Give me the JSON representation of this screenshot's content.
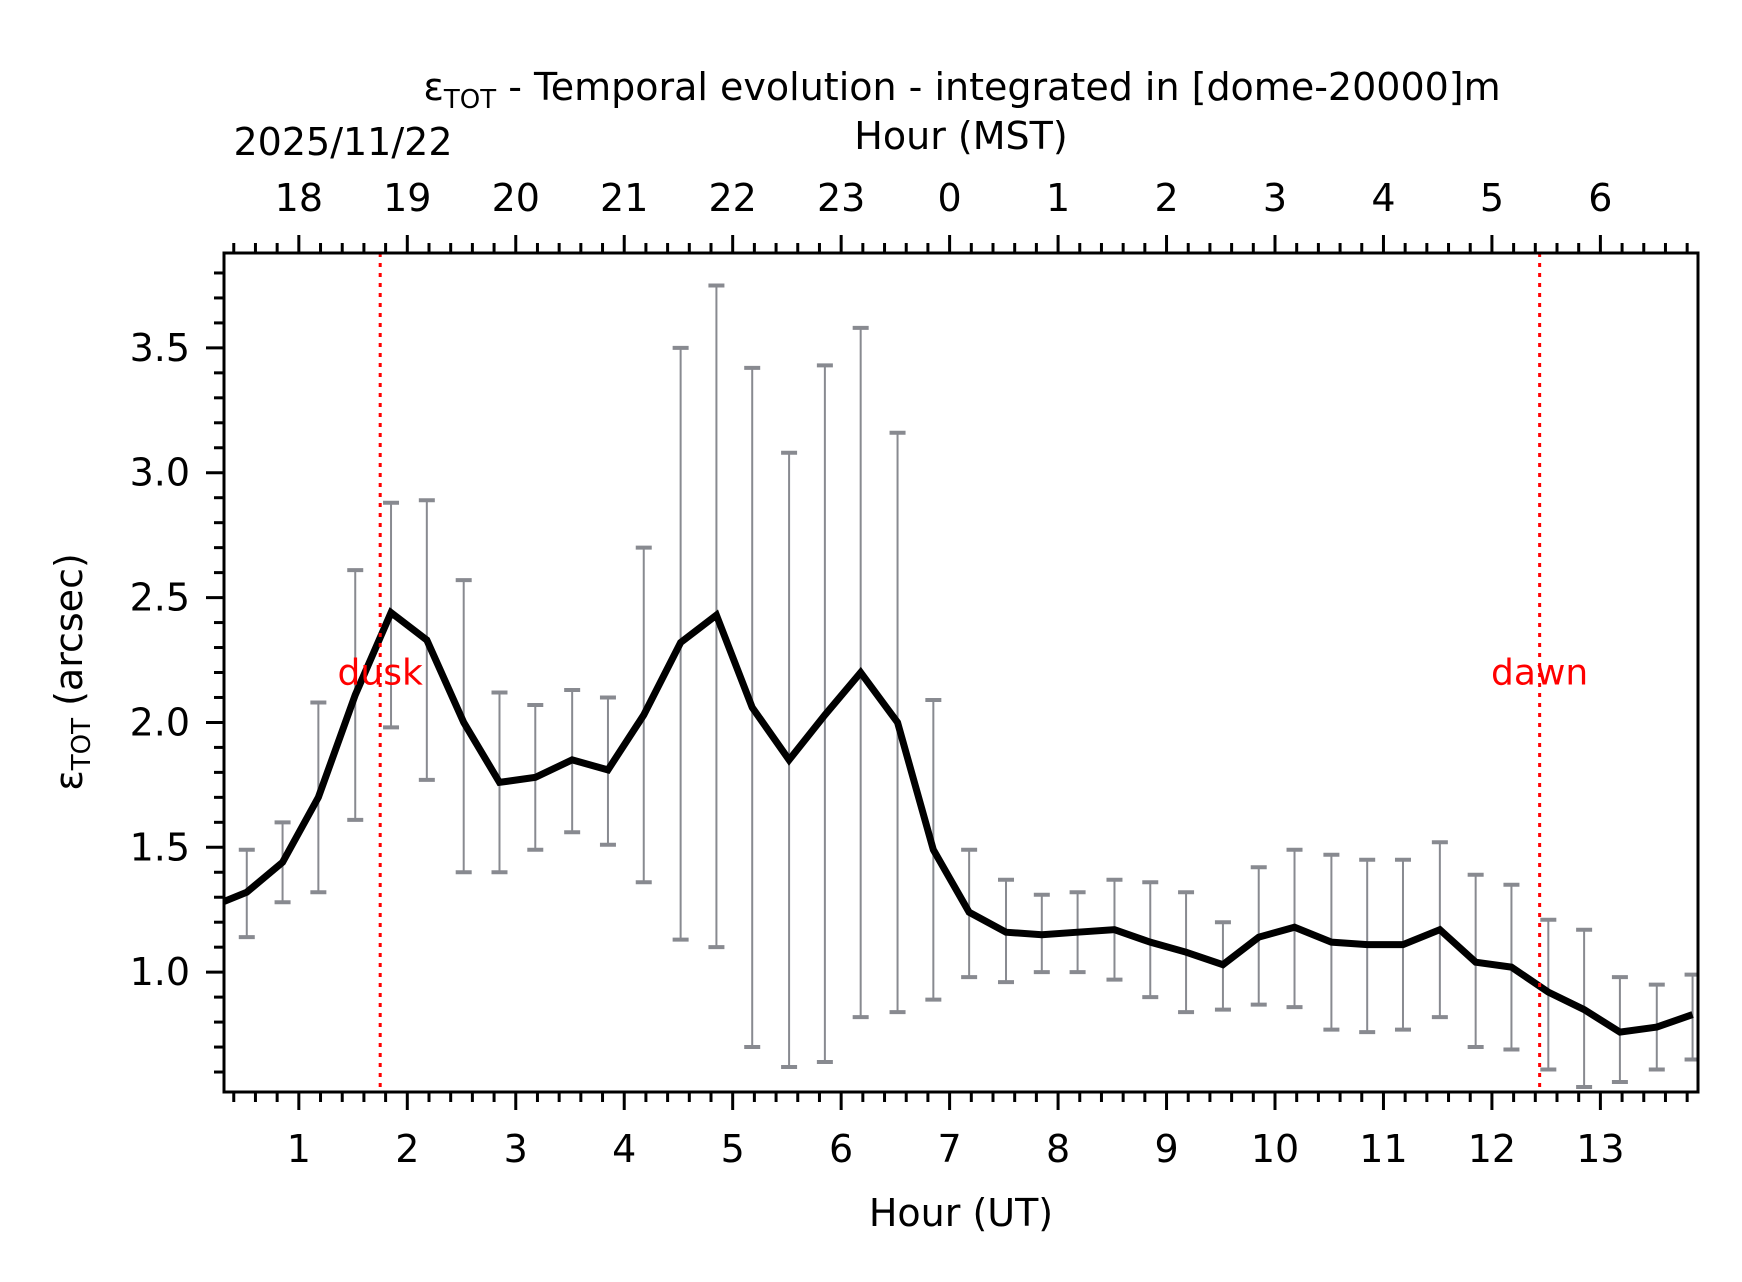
{
  "chart_data": {
    "type": "line",
    "title_symbol": "ε",
    "title_subscript": "TOT",
    "title_rest": " - Temporal evolution - integrated in [dome-20000]m",
    "date_label": "2025/11/22",
    "xlabel": "Hour (UT)",
    "x2label": "Hour (MST)",
    "ylabel_symbol": "ε",
    "ylabel_subscript": "TOT",
    "ylabel_rest": " (arcsec)",
    "xlim": [
      0.31,
      13.9
    ],
    "ylim": [
      0.52,
      3.88
    ],
    "x_ticks": [
      1,
      2,
      3,
      4,
      5,
      6,
      7,
      8,
      9,
      10,
      11,
      12,
      13
    ],
    "x_tick_labels": [
      "1",
      "2",
      "3",
      "4",
      "5",
      "6",
      "7",
      "8",
      "9",
      "10",
      "11",
      "12",
      "13"
    ],
    "x2_tick_labels": [
      "18",
      "19",
      "20",
      "21",
      "22",
      "23",
      "0",
      "1",
      "2",
      "3",
      "4",
      "5",
      "6"
    ],
    "y_ticks": [
      1.0,
      1.5,
      2.0,
      2.5,
      3.0,
      3.5
    ],
    "y_tick_labels": [
      "1.0",
      "1.5",
      "2.0",
      "2.5",
      "3.0",
      "3.5"
    ],
    "grid": false,
    "colors": {
      "line": "#000000",
      "errorbar": "#888a90",
      "marker_line": "#ff0000"
    },
    "series": [
      {
        "x": [
          0.18,
          0.52,
          0.85,
          1.18,
          1.52,
          1.85,
          2.18,
          2.52,
          2.85,
          3.18,
          3.52,
          3.85,
          4.18,
          4.52,
          4.85,
          5.18,
          5.52,
          5.85,
          6.18,
          6.52,
          6.85,
          7.18,
          7.52,
          7.85,
          8.18,
          8.52,
          8.85,
          9.18,
          9.52,
          9.85,
          10.18,
          10.52,
          10.85,
          11.18,
          11.52,
          11.85,
          12.18,
          12.52,
          12.85,
          13.18,
          13.52,
          13.85
        ],
        "y": [
          1.26,
          1.32,
          1.44,
          1.7,
          2.11,
          2.44,
          2.33,
          2.0,
          1.76,
          1.78,
          1.85,
          1.81,
          2.03,
          2.32,
          2.43,
          2.06,
          1.85,
          2.03,
          2.2,
          2.0,
          1.49,
          1.24,
          1.16,
          1.15,
          1.16,
          1.17,
          1.12,
          1.08,
          1.03,
          1.14,
          1.18,
          1.12,
          1.11,
          1.11,
          1.17,
          1.04,
          1.02,
          0.92,
          0.85,
          0.76,
          0.78,
          0.83
        ],
        "y_upper": [
          null,
          1.49,
          1.6,
          2.08,
          2.61,
          2.88,
          2.89,
          2.57,
          2.12,
          2.07,
          2.13,
          2.1,
          2.7,
          3.5,
          3.75,
          3.42,
          3.08,
          3.43,
          3.58,
          3.16,
          2.09,
          1.49,
          1.37,
          1.31,
          1.32,
          1.37,
          1.36,
          1.32,
          1.2,
          1.42,
          1.49,
          1.47,
          1.45,
          1.45,
          1.52,
          1.39,
          1.35,
          1.21,
          1.17,
          0.98,
          0.95,
          0.99
        ],
        "y_lower": [
          null,
          1.14,
          1.28,
          1.32,
          1.61,
          1.98,
          1.77,
          1.4,
          1.4,
          1.49,
          1.56,
          1.51,
          1.36,
          1.13,
          1.1,
          0.7,
          0.62,
          0.64,
          0.82,
          0.84,
          0.89,
          0.98,
          0.96,
          1.0,
          1.0,
          0.97,
          0.9,
          0.84,
          0.85,
          0.87,
          0.86,
          0.77,
          0.76,
          0.77,
          0.82,
          0.7,
          0.69,
          0.61,
          0.54,
          0.56,
          0.61,
          0.65
        ]
      }
    ],
    "annotations": [
      {
        "text": "dusk",
        "x": 1.75,
        "y": 2.2
      },
      {
        "text": "dawn",
        "x": 12.44,
        "y": 2.2
      }
    ]
  }
}
